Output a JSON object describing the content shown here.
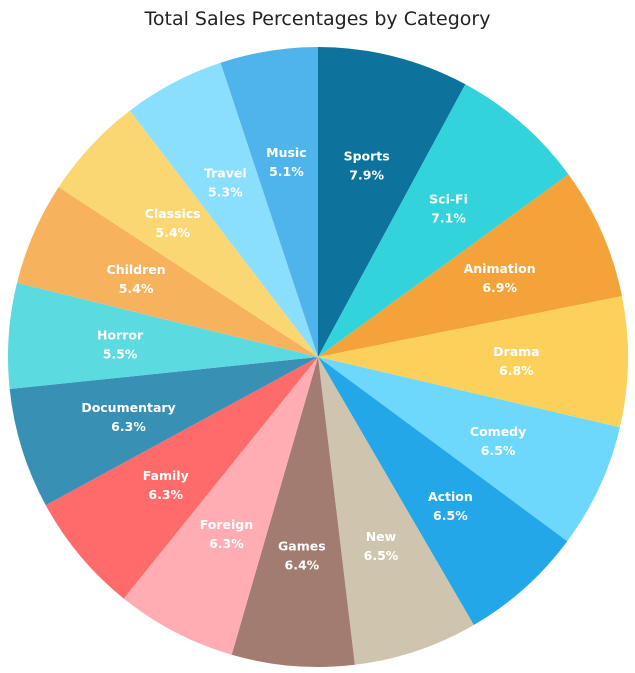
{
  "chart_data": {
    "type": "pie",
    "title": "Total Sales Percentages by Category",
    "slices": [
      {
        "label": "Sports",
        "value": 7.9,
        "display": "7.9%",
        "color": "#0e739c"
      },
      {
        "label": "Sci-Fi",
        "value": 7.1,
        "display": "7.1%",
        "color": "#33d3db"
      },
      {
        "label": "Animation",
        "value": 6.9,
        "display": "6.9%",
        "color": "#f4a33a"
      },
      {
        "label": "Drama",
        "value": 6.8,
        "display": "6.8%",
        "color": "#fbd15b"
      },
      {
        "label": "Comedy",
        "value": 6.5,
        "display": "6.5%",
        "color": "#6dd8fc"
      },
      {
        "label": "Action",
        "value": 6.5,
        "display": "6.5%",
        "color": "#24a7e9"
      },
      {
        "label": "New",
        "value": 6.5,
        "display": "6.5%",
        "color": "#cfc4ad"
      },
      {
        "label": "Games",
        "value": 6.4,
        "display": "6.4%",
        "color": "#a27b71"
      },
      {
        "label": "Foreign",
        "value": 6.3,
        "display": "6.3%",
        "color": "#ffadb2"
      },
      {
        "label": "Family",
        "value": 6.3,
        "display": "6.3%",
        "color": "#ff6a6a"
      },
      {
        "label": "Documentary",
        "value": 6.3,
        "display": "6.3%",
        "color": "#3890b4"
      },
      {
        "label": "Horror",
        "value": 5.5,
        "display": "5.5%",
        "color": "#5bdae0"
      },
      {
        "label": "Children",
        "value": 5.4,
        "display": "5.4%",
        "color": "#f6b25d"
      },
      {
        "label": "Classics",
        "value": 5.4,
        "display": "5.4%",
        "color": "#fbd773"
      },
      {
        "label": "Travel",
        "value": 5.3,
        "display": "5.3%",
        "color": "#8adfff"
      },
      {
        "label": "Music",
        "value": 5.1,
        "display": "5.1%",
        "color": "#50b4ec"
      }
    ]
  }
}
